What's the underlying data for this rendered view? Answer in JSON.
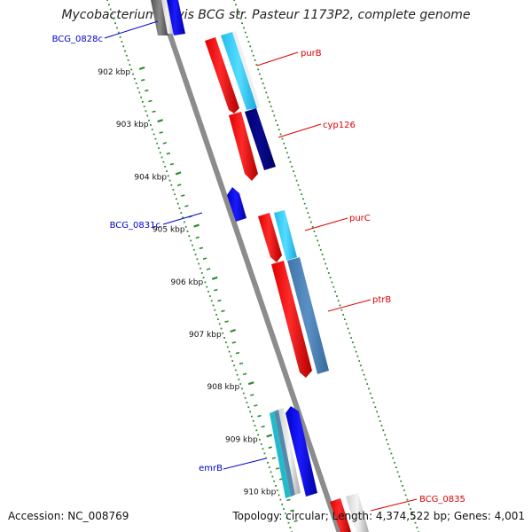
{
  "title": "Mycobacterium bovis BCG str. Pasteur 1173P2, complete genome",
  "footer": {
    "accession_label": "Accession:",
    "accession": "NC_008769",
    "topology_label": "Topology:",
    "topology": "circular",
    "length_label": "Length:",
    "length": "4,374,522 bp",
    "genes_label": "Genes:",
    "genes": "4,001"
  },
  "scale": {
    "ticks": [
      "902 kbp",
      "903 kbp",
      "904 kbp",
      "905 kbp",
      "906 kbp",
      "907 kbp",
      "908 kbp",
      "909 kbp",
      "910 kbp"
    ]
  },
  "genes": [
    {
      "name": "BCG_0828c",
      "strand": "minus",
      "color": "#0000cc"
    },
    {
      "name": "purB",
      "strand": "plus",
      "color": "#cc0000"
    },
    {
      "name": "cyp126",
      "strand": "plus",
      "color": "#cc0000"
    },
    {
      "name": "BCG_0831c",
      "strand": "minus",
      "color": "#0000cc"
    },
    {
      "name": "purC",
      "strand": "plus",
      "color": "#cc0000"
    },
    {
      "name": "ptrB",
      "strand": "plus",
      "color": "#cc0000"
    },
    {
      "name": "emrB",
      "strand": "minus",
      "color": "#0000cc"
    },
    {
      "name": "BCG_0835",
      "strand": "plus",
      "color": "#cc0000"
    }
  ],
  "colors": {
    "backbone": "#8c8c8c",
    "tick": "#2e8b2e",
    "forward_cds": "#ff0000",
    "reverse_cds": "#0000ff",
    "cog_light_blue": "#33ccff",
    "cog_navy": "#000080",
    "cog_steel": "#4682b4"
  }
}
